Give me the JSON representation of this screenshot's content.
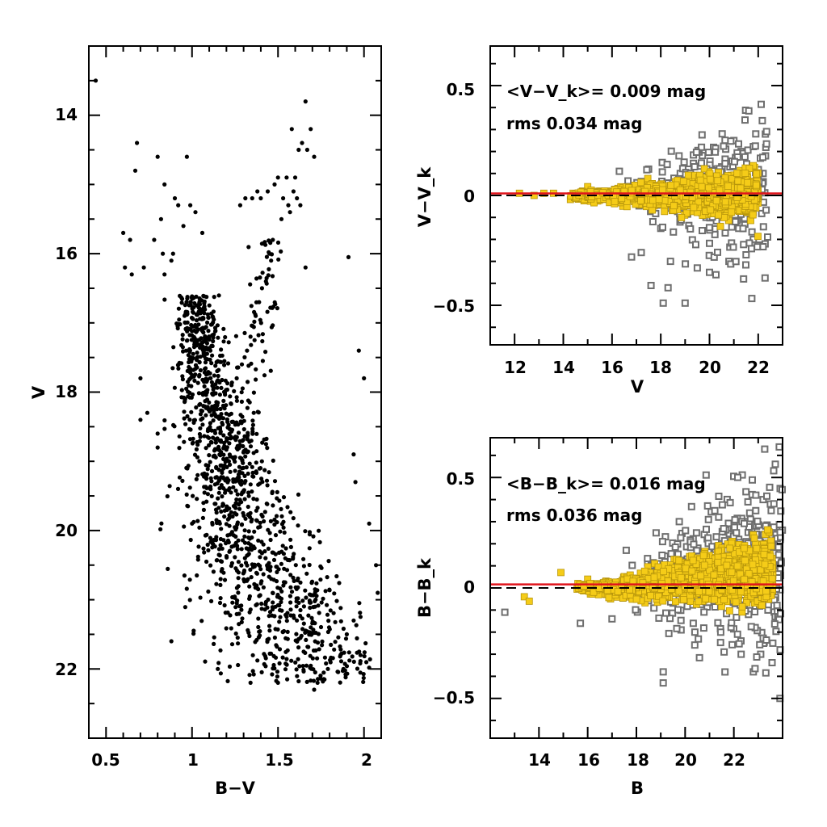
{
  "chart_data": [
    {
      "type": "scatter",
      "xlabel": "B−V",
      "ylabel": "V",
      "xlim": [
        0.4,
        2.1
      ],
      "ylim": [
        23.0,
        13.0
      ],
      "y_inverted": true,
      "xticks": [
        "0.5",
        "1",
        "1.5",
        "2"
      ],
      "yticks": [
        "14",
        "16",
        "18",
        "20",
        "22"
      ],
      "point_color": "#000000",
      "points_sample": [
        [
          0.44,
          13.5
        ],
        [
          0.68,
          14.4
        ],
        [
          0.8,
          14.6
        ],
        [
          0.97,
          14.6
        ],
        [
          0.67,
          14.8
        ],
        [
          0.84,
          15.0
        ],
        [
          0.9,
          15.2
        ],
        [
          0.92,
          15.3
        ],
        [
          0.99,
          15.3
        ],
        [
          1.02,
          15.4
        ],
        [
          0.82,
          15.5
        ],
        [
          0.95,
          15.6
        ],
        [
          0.6,
          15.7
        ],
        [
          0.64,
          15.8
        ],
        [
          0.78,
          15.8
        ],
        [
          0.83,
          16.0
        ],
        [
          0.89,
          16.0
        ],
        [
          1.06,
          15.7
        ],
        [
          0.61,
          16.2
        ],
        [
          0.65,
          16.3
        ],
        [
          0.72,
          16.2
        ],
        [
          0.84,
          16.3
        ],
        [
          0.88,
          16.1
        ],
        [
          1.91,
          16.05
        ],
        [
          1.66,
          13.8
        ],
        [
          1.69,
          14.2
        ],
        [
          1.67,
          14.5
        ],
        [
          1.62,
          14.5
        ],
        [
          1.64,
          14.4
        ],
        [
          1.71,
          14.6
        ],
        [
          1.58,
          14.2
        ],
        [
          1.6,
          14.9
        ],
        [
          1.55,
          14.9
        ],
        [
          1.5,
          14.9
        ],
        [
          1.48,
          15.0
        ],
        [
          1.44,
          15.1
        ],
        [
          1.4,
          15.2
        ],
        [
          1.38,
          15.1
        ],
        [
          1.35,
          15.2
        ],
        [
          1.31,
          15.2
        ],
        [
          1.28,
          15.3
        ],
        [
          1.53,
          15.2
        ],
        [
          1.56,
          15.3
        ],
        [
          1.59,
          15.1
        ],
        [
          1.61,
          15.2
        ],
        [
          1.63,
          15.3
        ],
        [
          1.57,
          15.4
        ],
        [
          1.52,
          15.5
        ],
        [
          1.66,
          16.2
        ],
        [
          1.47,
          15.8
        ],
        [
          1.46,
          16.1
        ],
        [
          1.43,
          16.4
        ],
        [
          1.39,
          16.7
        ],
        [
          1.37,
          16.9
        ],
        [
          1.34,
          17.2
        ],
        [
          1.32,
          17.4
        ],
        [
          1.29,
          17.6
        ],
        [
          1.26,
          17.8
        ],
        [
          1.23,
          17.9
        ],
        [
          1.45,
          16.0
        ],
        [
          0.7,
          17.8
        ],
        [
          0.7,
          18.4
        ],
        [
          0.74,
          18.3
        ],
        [
          0.8,
          18.6
        ],
        [
          0.8,
          18.8
        ],
        [
          0.88,
          21.6
        ],
        [
          1.0,
          19.9
        ],
        [
          1.15,
          22.0
        ],
        [
          1.97,
          17.4
        ],
        [
          2.0,
          17.8
        ],
        [
          1.94,
          18.9
        ],
        [
          1.95,
          19.3
        ],
        [
          2.03,
          19.9
        ],
        [
          2.07,
          20.5
        ],
        [
          2.08,
          20.9
        ],
        [
          1.98,
          21.8
        ],
        [
          1.88,
          22.0
        ],
        [
          1.73,
          22.2
        ],
        [
          1.71,
          22.3
        ],
        [
          1.5,
          22.2
        ],
        [
          1.34,
          22.2
        ],
        [
          1.79,
          22.0
        ],
        [
          1.94,
          21.3
        ],
        [
          1.9,
          21.5
        ]
      ],
      "note_dense": "dense stellar sequence from ~(1.0,16.6) through (1.2,19.3), (1.35,20.5) to (1.7,21.8)"
    },
    {
      "type": "scatter",
      "xlabel": "V",
      "ylabel": "V−V_k",
      "xlim": [
        11.0,
        23.0
      ],
      "ylim": [
        -0.68,
        0.68
      ],
      "xticks": [
        "12",
        "14",
        "16",
        "18",
        "20",
        "22"
      ],
      "yticks": [
        "0.5",
        "0",
        "−0.5"
      ],
      "annotation_lines": [
        "<V−V_k>= 0.009 mag",
        "rms 0.034 mag"
      ],
      "reference_line_solid": 0.009,
      "reference_line_dashed": 0.0,
      "colors": {
        "selected": "#F5CC18",
        "rejected": "#6E6E6E",
        "mean_line": "#E0141C"
      },
      "series": [
        {
          "points": [
            [
              12.2,
              0.01
            ],
            [
              12.8,
              0.0
            ],
            [
              13.2,
              0.01
            ],
            [
              13.6,
              0.01
            ],
            [
              14.4,
              0.01
            ],
            [
              14.8,
              0.02
            ],
            [
              15.0,
              0.04
            ],
            [
              15.5,
              0.02
            ],
            [
              15.8,
              0.01
            ],
            [
              16.2,
              0.0
            ],
            [
              16.6,
              -0.01
            ],
            [
              17.0,
              0.02
            ],
            [
              17.4,
              0.0
            ],
            [
              17.8,
              0.03
            ],
            [
              18.2,
              0.01
            ],
            [
              18.6,
              0.02
            ],
            [
              19.0,
              0.0
            ],
            [
              19.4,
              0.02
            ],
            [
              19.8,
              0.01
            ],
            [
              20.2,
              0.02
            ],
            [
              20.6,
              0.0
            ],
            [
              21.0,
              0.02
            ],
            [
              21.4,
              0.01
            ],
            [
              21.8,
              0.03
            ]
          ]
        },
        {
          "points": [
            [
              18.1,
              -0.49
            ],
            [
              18.3,
              -0.42
            ],
            [
              17.6,
              -0.41
            ],
            [
              19.0,
              -0.49
            ],
            [
              17.2,
              -0.26
            ],
            [
              16.8,
              -0.28
            ],
            [
              18.4,
              -0.3
            ],
            [
              19.5,
              -0.33
            ],
            [
              20.0,
              -0.35
            ],
            [
              20.8,
              -0.3
            ],
            [
              21.5,
              -0.27
            ],
            [
              21.0,
              0.25
            ],
            [
              21.3,
              0.2
            ],
            [
              21.9,
              0.28
            ],
            [
              22.3,
              0.18
            ],
            [
              22.2,
              0.1
            ],
            [
              20.5,
              0.13
            ],
            [
              17.5,
              0.12
            ],
            [
              18.8,
              0.1
            ],
            [
              16.3,
              0.11
            ],
            [
              21.8,
              -0.2
            ],
            [
              21.2,
              -0.15
            ],
            [
              19.7,
              -0.16
            ],
            [
              18.0,
              -0.15
            ]
          ]
        }
      ]
    },
    {
      "type": "scatter",
      "xlabel": "B",
      "ylabel": "B−B_k",
      "xlim": [
        12.0,
        24.0
      ],
      "ylim": [
        -0.68,
        0.68
      ],
      "xticks": [
        "14",
        "16",
        "18",
        "20",
        "22"
      ],
      "yticks": [
        "0.5",
        "0",
        "−0.5"
      ],
      "annotation_lines": [
        "<B−B_k>= 0.016 mag",
        "rms 0.036 mag"
      ],
      "reference_line_solid": 0.016,
      "reference_line_dashed": 0.0,
      "colors": {
        "selected": "#F5CC18",
        "rejected": "#6E6E6E",
        "mean_line": "#E0141C"
      },
      "series": [
        {
          "points": [
            [
              13.4,
              -0.04
            ],
            [
              13.6,
              -0.06
            ],
            [
              14.9,
              0.07
            ],
            [
              15.6,
              0.02
            ],
            [
              16.0,
              0.04
            ],
            [
              16.4,
              0.0
            ],
            [
              16.8,
              0.02
            ],
            [
              17.2,
              -0.02
            ],
            [
              17.6,
              0.03
            ],
            [
              18.0,
              0.02
            ],
            [
              18.4,
              0.04
            ],
            [
              18.8,
              0.01
            ],
            [
              19.2,
              0.04
            ],
            [
              19.6,
              0.02
            ],
            [
              20.0,
              0.05
            ],
            [
              20.4,
              0.03
            ],
            [
              20.8,
              0.06
            ],
            [
              21.2,
              0.04
            ],
            [
              21.6,
              0.08
            ],
            [
              22.0,
              0.06
            ],
            [
              22.4,
              0.09
            ],
            [
              22.8,
              0.05
            ],
            [
              23.2,
              0.07
            ],
            [
              23.4,
              0.03
            ]
          ]
        },
        {
          "points": [
            [
              12.6,
              -0.11
            ],
            [
              15.7,
              -0.16
            ],
            [
              17.0,
              -0.14
            ],
            [
              19.1,
              -0.38
            ],
            [
              19.1,
              -0.43
            ],
            [
              20.4,
              -0.2
            ],
            [
              21.6,
              -0.29
            ],
            [
              22.3,
              -0.3
            ],
            [
              22.8,
              -0.38
            ],
            [
              23.1,
              -0.3
            ],
            [
              23.6,
              -0.25
            ],
            [
              23.9,
              -0.28
            ],
            [
              23.7,
              0.56
            ],
            [
              23.9,
              0.45
            ],
            [
              23.2,
              0.4
            ],
            [
              22.9,
              0.35
            ],
            [
              22.5,
              0.3
            ],
            [
              23.5,
              0.38
            ],
            [
              22.2,
              0.22
            ],
            [
              21.9,
              0.18
            ],
            [
              21.2,
              0.15
            ],
            [
              23.8,
              0.25
            ],
            [
              23.4,
              -0.1
            ],
            [
              22.6,
              -0.12
            ]
          ]
        }
      ]
    }
  ]
}
